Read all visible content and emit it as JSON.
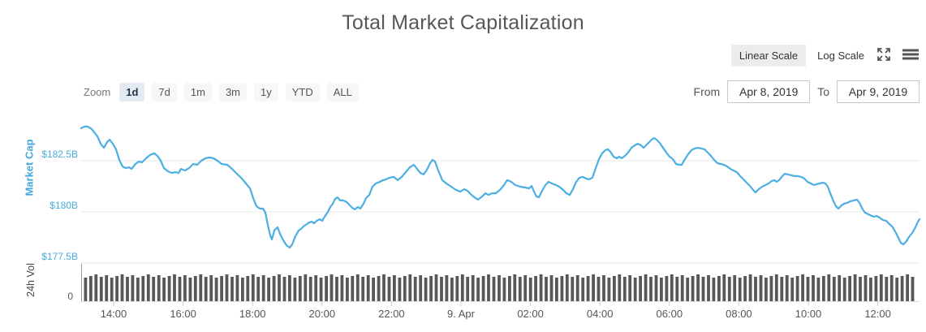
{
  "header": {
    "title": "Total Market Capitalization"
  },
  "scale_toggle": {
    "linear_label": "Linear Scale",
    "log_label": "Log Scale",
    "selected": "Linear Scale"
  },
  "zoom_controls": {
    "label": "Zoom",
    "options": [
      {
        "label": "1d",
        "selected": true
      },
      {
        "label": "7d",
        "selected": false
      },
      {
        "label": "1m",
        "selected": false
      },
      {
        "label": "3m",
        "selected": false
      },
      {
        "label": "1y",
        "selected": false
      },
      {
        "label": "YTD",
        "selected": false
      },
      {
        "label": "ALL",
        "selected": false
      }
    ]
  },
  "date_range": {
    "from_label": "From",
    "from_value": "Apr 8, 2019",
    "to_label": "To",
    "to_value": "Apr 9, 2019"
  },
  "chart_data": {
    "type": "line",
    "title": "Total Market Capitalization",
    "unit": "USD billions",
    "y_axis": {
      "label": "Market Cap",
      "color": "#4aabdd",
      "ticks": [
        {
          "label": "$182.5B",
          "value": 182.5
        },
        {
          "label": "$180B",
          "value": 180
        },
        {
          "label": "$177.5B",
          "value": 177.5
        }
      ],
      "ylim": [
        177.3,
        184.6
      ],
      "grid": true
    },
    "vol_axis": {
      "label": "24h Vol",
      "zero_tick": "0"
    },
    "x_ticks": [
      "14:00",
      "16:00",
      "18:00",
      "20:00",
      "22:00",
      "9. Apr",
      "02:00",
      "04:00",
      "06:00",
      "08:00",
      "10:00",
      "12:00"
    ],
    "series": [
      {
        "name": "Market Cap",
        "color": "#4bafe2",
        "points": [
          [
            100,
            184.09
          ],
          [
            104,
            184.17
          ],
          [
            108,
            184.17
          ],
          [
            113,
            184.05
          ],
          [
            120,
            183.69
          ],
          [
            124,
            183.33
          ],
          [
            128,
            183.13
          ],
          [
            132,
            183.41
          ],
          [
            135,
            183.53
          ],
          [
            139,
            183.33
          ],
          [
            143,
            183.06
          ],
          [
            147,
            182.54
          ],
          [
            151,
            182.22
          ],
          [
            155,
            182.14
          ],
          [
            159,
            182.18
          ],
          [
            162,
            182.1
          ],
          [
            167,
            182.34
          ],
          [
            171,
            182.46
          ],
          [
            175,
            182.42
          ],
          [
            180,
            182.62
          ],
          [
            185,
            182.78
          ],
          [
            190,
            182.86
          ],
          [
            194,
            182.74
          ],
          [
            198,
            182.5
          ],
          [
            202,
            182.14
          ],
          [
            207,
            181.98
          ],
          [
            212,
            181.9
          ],
          [
            216,
            181.94
          ],
          [
            220,
            181.9
          ],
          [
            223,
            182.1
          ],
          [
            228,
            182.02
          ],
          [
            233,
            182.14
          ],
          [
            238,
            182.34
          ],
          [
            243,
            182.3
          ],
          [
            248,
            182.5
          ],
          [
            253,
            182.62
          ],
          [
            258,
            182.66
          ],
          [
            263,
            182.62
          ],
          [
            268,
            182.5
          ],
          [
            273,
            182.34
          ],
          [
            280,
            182.3
          ],
          [
            286,
            182.1
          ],
          [
            292,
            181.86
          ],
          [
            298,
            181.63
          ],
          [
            303,
            181.39
          ],
          [
            308,
            181.15
          ],
          [
            312,
            180.67
          ],
          [
            316,
            180.28
          ],
          [
            320,
            180.16
          ],
          [
            324,
            180.16
          ],
          [
            327,
            179.96
          ],
          [
            330,
            179.36
          ],
          [
            333,
            178.85
          ],
          [
            335,
            178.65
          ],
          [
            338,
            179.09
          ],
          [
            342,
            179.25
          ],
          [
            345,
            178.93
          ],
          [
            349,
            178.61
          ],
          [
            353,
            178.37
          ],
          [
            357,
            178.25
          ],
          [
            360,
            178.41
          ],
          [
            364,
            178.81
          ],
          [
            368,
            179.09
          ],
          [
            371,
            179.17
          ],
          [
            374,
            179.29
          ],
          [
            378,
            179.4
          ],
          [
            381,
            179.48
          ],
          [
            384,
            179.52
          ],
          [
            387,
            179.44
          ],
          [
            390,
            179.56
          ],
          [
            394,
            179.64
          ],
          [
            397,
            179.56
          ],
          [
            400,
            179.76
          ],
          [
            404,
            180.0
          ],
          [
            407,
            180.24
          ],
          [
            410,
            180.4
          ],
          [
            413,
            180.63
          ],
          [
            416,
            180.71
          ],
          [
            419,
            180.56
          ],
          [
            423,
            180.56
          ],
          [
            427,
            180.48
          ],
          [
            430,
            180.36
          ],
          [
            434,
            180.2
          ],
          [
            437,
            180.12
          ],
          [
            441,
            180.24
          ],
          [
            444,
            180.16
          ],
          [
            448,
            180.4
          ],
          [
            451,
            180.67
          ],
          [
            455,
            180.83
          ],
          [
            459,
            181.23
          ],
          [
            463,
            181.39
          ],
          [
            468,
            181.47
          ],
          [
            472,
            181.55
          ],
          [
            476,
            181.59
          ],
          [
            480,
            181.67
          ],
          [
            485,
            181.71
          ],
          [
            490,
            181.55
          ],
          [
            495,
            181.71
          ],
          [
            500,
            181.94
          ],
          [
            505,
            182.18
          ],
          [
            510,
            182.3
          ],
          [
            514,
            182.1
          ],
          [
            518,
            181.9
          ],
          [
            522,
            181.83
          ],
          [
            526,
            182.06
          ],
          [
            530,
            182.38
          ],
          [
            533,
            182.54
          ],
          [
            536,
            182.46
          ],
          [
            540,
            182.02
          ],
          [
            545,
            181.55
          ],
          [
            550,
            181.39
          ],
          [
            556,
            181.23
          ],
          [
            562,
            181.07
          ],
          [
            567,
            180.99
          ],
          [
            572,
            181.11
          ],
          [
            576,
            181.03
          ],
          [
            581,
            180.83
          ],
          [
            586,
            180.67
          ],
          [
            589,
            180.6
          ],
          [
            594,
            180.75
          ],
          [
            598,
            180.91
          ],
          [
            602,
            180.83
          ],
          [
            606,
            180.91
          ],
          [
            611,
            180.91
          ],
          [
            616,
            181.07
          ],
          [
            621,
            181.31
          ],
          [
            625,
            181.55
          ],
          [
            630,
            181.47
          ],
          [
            635,
            181.31
          ],
          [
            641,
            181.23
          ],
          [
            647,
            181.19
          ],
          [
            652,
            181.15
          ],
          [
            655,
            181.27
          ],
          [
            658,
            180.99
          ],
          [
            661,
            180.75
          ],
          [
            664,
            180.71
          ],
          [
            668,
            181.03
          ],
          [
            672,
            181.31
          ],
          [
            676,
            181.47
          ],
          [
            680,
            181.39
          ],
          [
            685,
            181.31
          ],
          [
            689,
            181.23
          ],
          [
            694,
            181.07
          ],
          [
            698,
            180.91
          ],
          [
            702,
            180.83
          ],
          [
            706,
            181.11
          ],
          [
            710,
            181.47
          ],
          [
            714,
            181.67
          ],
          [
            718,
            181.71
          ],
          [
            722,
            181.63
          ],
          [
            726,
            181.59
          ],
          [
            730,
            181.67
          ],
          [
            734,
            182.14
          ],
          [
            738,
            182.58
          ],
          [
            742,
            182.86
          ],
          [
            746,
            183.02
          ],
          [
            749,
            183.06
          ],
          [
            752,
            182.94
          ],
          [
            756,
            182.7
          ],
          [
            760,
            182.62
          ],
          [
            763,
            182.7
          ],
          [
            766,
            182.62
          ],
          [
            770,
            182.74
          ],
          [
            774,
            182.9
          ],
          [
            778,
            183.13
          ],
          [
            782,
            183.25
          ],
          [
            786,
            183.33
          ],
          [
            790,
            183.25
          ],
          [
            793,
            183.13
          ],
          [
            795,
            183.21
          ],
          [
            799,
            183.37
          ],
          [
            803,
            183.53
          ],
          [
            806,
            183.61
          ],
          [
            809,
            183.53
          ],
          [
            813,
            183.37
          ],
          [
            817,
            183.13
          ],
          [
            821,
            182.9
          ],
          [
            825,
            182.7
          ],
          [
            829,
            182.58
          ],
          [
            833,
            182.34
          ],
          [
            837,
            182.3
          ],
          [
            840,
            182.3
          ],
          [
            844,
            182.58
          ],
          [
            848,
            182.82
          ],
          [
            852,
            183.02
          ],
          [
            856,
            183.1
          ],
          [
            860,
            183.13
          ],
          [
            864,
            183.1
          ],
          [
            868,
            183.06
          ],
          [
            872,
            182.9
          ],
          [
            876,
            182.74
          ],
          [
            880,
            182.54
          ],
          [
            884,
            182.38
          ],
          [
            888,
            182.34
          ],
          [
            892,
            182.3
          ],
          [
            896,
            182.22
          ],
          [
            900,
            182.1
          ],
          [
            904,
            182.02
          ],
          [
            908,
            181.94
          ],
          [
            912,
            181.75
          ],
          [
            916,
            181.59
          ],
          [
            920,
            181.43
          ],
          [
            924,
            181.27
          ],
          [
            928,
            181.07
          ],
          [
            931,
            180.95
          ],
          [
            935,
            181.11
          ],
          [
            939,
            181.23
          ],
          [
            943,
            181.31
          ],
          [
            947,
            181.39
          ],
          [
            951,
            181.51
          ],
          [
            954,
            181.55
          ],
          [
            957,
            181.47
          ],
          [
            960,
            181.55
          ],
          [
            964,
            181.75
          ],
          [
            967,
            181.86
          ],
          [
            971,
            181.83
          ],
          [
            975,
            181.79
          ],
          [
            979,
            181.75
          ],
          [
            983,
            181.75
          ],
          [
            987,
            181.71
          ],
          [
            991,
            181.63
          ],
          [
            995,
            181.47
          ],
          [
            999,
            181.39
          ],
          [
            1003,
            181.31
          ],
          [
            1006,
            181.35
          ],
          [
            1010,
            181.39
          ],
          [
            1014,
            181.43
          ],
          [
            1017,
            181.39
          ],
          [
            1020,
            181.23
          ],
          [
            1023,
            180.91
          ],
          [
            1027,
            180.52
          ],
          [
            1030,
            180.28
          ],
          [
            1033,
            180.16
          ],
          [
            1037,
            180.32
          ],
          [
            1040,
            180.4
          ],
          [
            1044,
            180.44
          ],
          [
            1048,
            180.52
          ],
          [
            1052,
            180.56
          ],
          [
            1056,
            180.6
          ],
          [
            1059,
            180.44
          ],
          [
            1063,
            180.12
          ],
          [
            1066,
            179.96
          ],
          [
            1070,
            179.88
          ],
          [
            1074,
            179.8
          ],
          [
            1077,
            179.76
          ],
          [
            1080,
            179.8
          ],
          [
            1084,
            179.72
          ],
          [
            1088,
            179.6
          ],
          [
            1092,
            179.56
          ],
          [
            1096,
            179.4
          ],
          [
            1100,
            179.25
          ],
          [
            1104,
            178.97
          ],
          [
            1107,
            178.73
          ],
          [
            1110,
            178.49
          ],
          [
            1113,
            178.41
          ],
          [
            1117,
            178.57
          ],
          [
            1120,
            178.77
          ],
          [
            1124,
            178.97
          ],
          [
            1128,
            179.25
          ],
          [
            1131,
            179.52
          ],
          [
            1133,
            179.64
          ]
        ]
      }
    ],
    "volume": {
      "name": "24h Vol",
      "color": "#575757",
      "bar_count": 159,
      "appearance": "dense near-uniform dark bars, only a zero tick is labeled"
    },
    "legend": "none",
    "icons": {
      "expand": "expand-icon",
      "menu": "hamburger-menu-icon"
    }
  }
}
